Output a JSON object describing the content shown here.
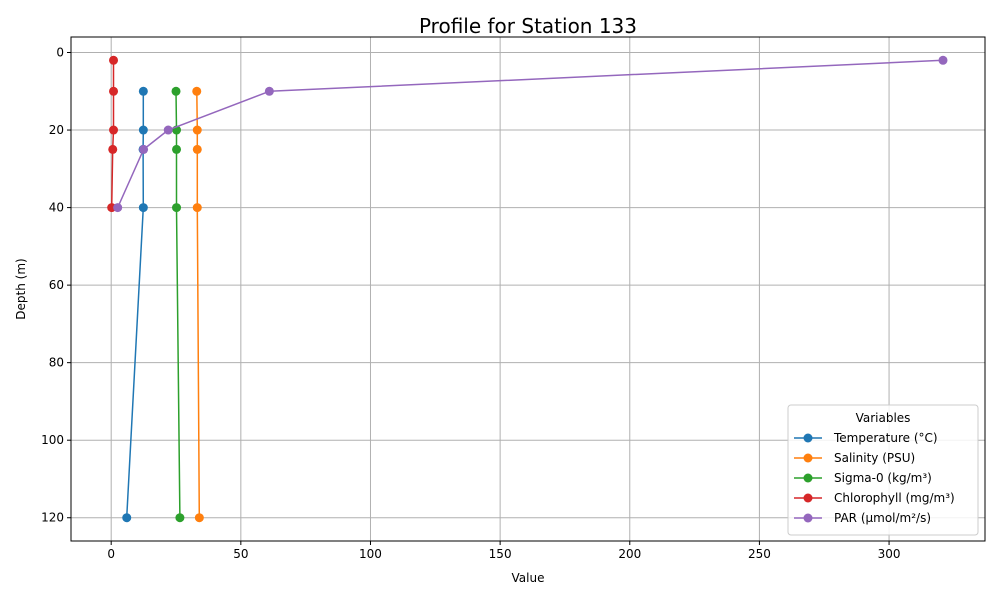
{
  "chart_data": {
    "type": "line",
    "title": "Profile for Station 133",
    "xlabel": "Value",
    "ylabel": "Depth (m)",
    "xlim": [
      -15.5,
      337
    ],
    "ylim": [
      126,
      -4
    ],
    "y_inverted": true,
    "grid": true,
    "x_ticks": [
      0,
      50,
      100,
      150,
      200,
      250,
      300
    ],
    "y_ticks": [
      0,
      20,
      40,
      60,
      80,
      100,
      120
    ],
    "x_tick_labels": [
      "0",
      "50",
      "100",
      "150",
      "200",
      "250",
      "300"
    ],
    "y_tick_labels": [
      "0",
      "20",
      "40",
      "60",
      "80",
      "100",
      "120"
    ],
    "legend": {
      "title": "Variables",
      "placement": "bottom-right"
    },
    "depths": [
      2,
      10,
      20,
      25,
      40,
      120
    ],
    "series": [
      {
        "name": "Temperature (°C)",
        "color": "#1f77b4",
        "points": [
          [
            12.4,
            10
          ],
          [
            12.4,
            20
          ],
          [
            12.3,
            25
          ],
          [
            12.4,
            40
          ],
          [
            6.0,
            120
          ]
        ]
      },
      {
        "name": "Salinity (PSU)",
        "color": "#ff7f0e",
        "points": [
          [
            33.0,
            10
          ],
          [
            33.2,
            20
          ],
          [
            33.2,
            25
          ],
          [
            33.2,
            40
          ],
          [
            34.0,
            120
          ]
        ]
      },
      {
        "name": "Sigma-0 (kg/m³)",
        "color": "#2ca02c",
        "points": [
          [
            25.0,
            10
          ],
          [
            25.2,
            20
          ],
          [
            25.2,
            25
          ],
          [
            25.2,
            40
          ],
          [
            26.5,
            120
          ]
        ]
      },
      {
        "name": "Chlorophyll (mg/m³)",
        "color": "#d62728",
        "points": [
          [
            0.9,
            2
          ],
          [
            0.9,
            10
          ],
          [
            0.9,
            20
          ],
          [
            0.6,
            25
          ],
          [
            0.2,
            40
          ]
        ]
      },
      {
        "name": "PAR (µmol/m²/s)",
        "color": "#9467bd",
        "points": [
          [
            320.8,
            2
          ],
          [
            61.0,
            10
          ],
          [
            22.0,
            20
          ],
          [
            12.5,
            25
          ],
          [
            2.5,
            40
          ]
        ]
      }
    ]
  }
}
